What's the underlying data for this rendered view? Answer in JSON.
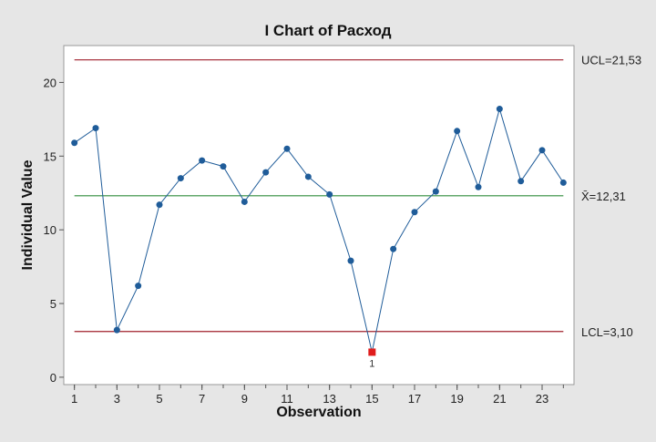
{
  "chart_data": {
    "type": "line",
    "title": "I Chart of Расход",
    "xlabel": "Observation",
    "ylabel": "Individual Value",
    "xlim": [
      0.5,
      24.5
    ],
    "ylim": [
      -0.5,
      22.5
    ],
    "x_ticks": [
      1,
      3,
      5,
      7,
      9,
      11,
      13,
      15,
      17,
      19,
      21,
      23
    ],
    "y_ticks": [
      0,
      5,
      10,
      15,
      20
    ],
    "grid": false,
    "series": [
      {
        "x": [
          1,
          2,
          3,
          4,
          5,
          6,
          7,
          8,
          9,
          10,
          11,
          12,
          13,
          14,
          15,
          16,
          17,
          18,
          19,
          20,
          21,
          22,
          23,
          24
        ],
        "values": [
          15.9,
          16.9,
          3.2,
          6.2,
          11.7,
          13.5,
          14.7,
          14.3,
          11.9,
          13.9,
          15.5,
          13.6,
          12.4,
          7.9,
          1.7,
          8.7,
          11.2,
          12.6,
          16.7,
          12.9,
          18.2,
          13.3,
          15.4,
          13.2
        ],
        "color": "#1f5c99"
      }
    ],
    "control_lines": [
      {
        "label": "UCL=21,53",
        "value": 21.53,
        "color": "#a0202c"
      },
      {
        "label": "X̄=12,31",
        "value": 12.31,
        "color": "#2e8b3a"
      },
      {
        "label": "LCL=3,10",
        "value": 3.1,
        "color": "#a0202c"
      }
    ],
    "out_of_control": [
      {
        "x": 15,
        "value": 1.7,
        "flag": "1",
        "color": "#e01c1c"
      }
    ]
  }
}
